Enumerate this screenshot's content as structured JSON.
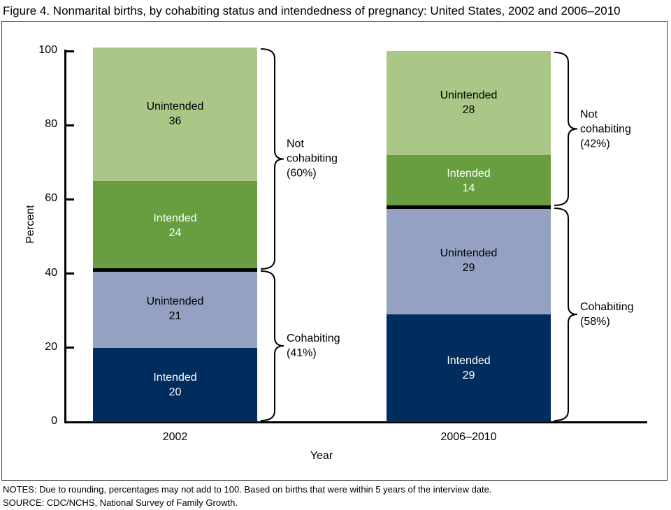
{
  "title": "Figure 4. Nonmarital births, by cohabiting status and intendedness of pregnancy: United States, 2002 and 2006–2010",
  "notes": "NOTES: Due to rounding, percentages may not add to 100. Based on births that were within 5 years of the interview date.",
  "source": "SOURCE: CDC/NCHS, National Survey of Family Growth.",
  "chart_data": {
    "type": "bar",
    "subtype": "stacked-vertical",
    "title": "Nonmarital births, by cohabiting status and intendedness of pregnancy: United States, 2002 and 2006–2010",
    "xlabel": "Year",
    "ylabel": "Percent",
    "ylim": [
      0,
      100
    ],
    "yticks": [
      0,
      20,
      40,
      60,
      80,
      100
    ],
    "grid": false,
    "legend": "none",
    "categories": [
      "2002",
      "2006–2010"
    ],
    "series": [
      {
        "name": "Cohabiting - Intended",
        "label": "Intended",
        "values": [
          20,
          29
        ],
        "color": "#012c5e",
        "text_color": "#ffffff"
      },
      {
        "name": "Cohabiting - Unintended",
        "label": "Unintended",
        "values": [
          21,
          29
        ],
        "color": "#94a1c2",
        "text_color": "#000000"
      },
      {
        "name": "Not cohabiting - Intended",
        "label": "Intended",
        "values": [
          24,
          14
        ],
        "color": "#689e3f",
        "text_color": "#ffffff"
      },
      {
        "name": "Not cohabiting - Unintended",
        "label": "Unintended",
        "values": [
          36,
          28
        ],
        "color": "#aac787",
        "text_color": "#000000"
      }
    ],
    "divider_after_series_index": 1,
    "divider_color": "#000000",
    "group_annotations": [
      [
        {
          "label": "Cohabiting",
          "pct_text": "(41%)",
          "from": 0,
          "to": 41
        },
        {
          "label": "Not cohabiting",
          "pct_text": "(60%)",
          "from": 41,
          "to": 101
        }
      ],
      [
        {
          "label": "Cohabiting",
          "pct_text": "(58%)",
          "from": 0,
          "to": 58
        },
        {
          "label": "Not cohabiting",
          "pct_text": "(42%)",
          "from": 58,
          "to": 100
        }
      ]
    ]
  }
}
